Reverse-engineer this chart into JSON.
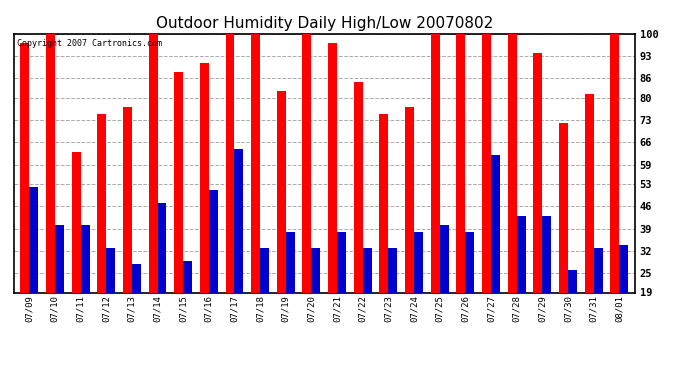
{
  "title": "Outdoor Humidity Daily High/Low 20070802",
  "copyright": "Copyright 2007 Cartronics.com",
  "categories": [
    "07/09",
    "07/10",
    "07/11",
    "07/12",
    "07/13",
    "07/14",
    "07/15",
    "07/16",
    "07/17",
    "07/18",
    "07/19",
    "07/20",
    "07/21",
    "07/22",
    "07/23",
    "07/24",
    "07/25",
    "07/26",
    "07/27",
    "07/28",
    "07/29",
    "07/30",
    "07/31",
    "08/01"
  ],
  "highs": [
    97,
    100,
    63,
    75,
    77,
    100,
    88,
    91,
    100,
    100,
    82,
    100,
    97,
    85,
    75,
    77,
    100,
    100,
    100,
    100,
    94,
    72,
    81,
    100
  ],
  "lows": [
    52,
    40,
    40,
    33,
    28,
    47,
    29,
    51,
    64,
    33,
    38,
    33,
    38,
    33,
    33,
    38,
    40,
    38,
    62,
    43,
    43,
    26,
    33,
    34
  ],
  "high_color": "#ff0000",
  "low_color": "#0000cc",
  "bg_color": "#ffffff",
  "yticks": [
    19,
    25,
    32,
    39,
    46,
    53,
    59,
    66,
    73,
    80,
    86,
    93,
    100
  ],
  "ymin": 19,
  "ymax": 100,
  "grid_color": "#aaaaaa",
  "title_fontsize": 11,
  "bar_width": 0.35
}
